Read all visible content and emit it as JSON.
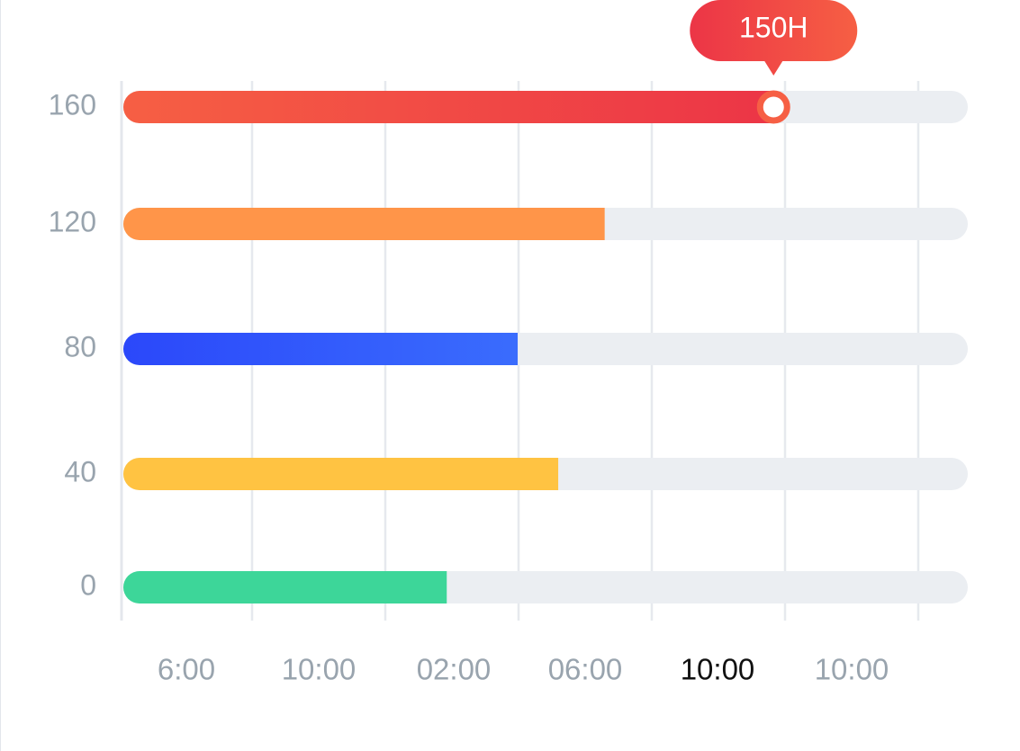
{
  "chart_data": {
    "type": "bar",
    "orientation": "horizontal",
    "y_ticks": [
      "160",
      "120",
      "80",
      "40",
      "0"
    ],
    "x_ticks": [
      "6:00",
      "10:00",
      "02:00",
      "06:00",
      "10:00",
      "10:00"
    ],
    "active_x_tick_index": 4,
    "bars": [
      {
        "category": "160",
        "fill_fraction": 0.77,
        "color_start": "#f65f44",
        "color_end": "#ec3546"
      },
      {
        "category": "120",
        "fill_fraction": 0.57,
        "color_start": "#ff9549",
        "color_end": "#ff9549"
      },
      {
        "category": "80",
        "fill_fraction": 0.467,
        "color_start": "#2b48fa",
        "color_end": "#3a6cfd"
      },
      {
        "category": "40",
        "fill_fraction": 0.515,
        "color_start": "#ffc342",
        "color_end": "#ffc342"
      },
      {
        "category": "0",
        "fill_fraction": 0.383,
        "color_start": "#3dd699",
        "color_end": "#3dd699"
      }
    ],
    "track_color": "#ebeef2",
    "gridlines": true,
    "tooltip": {
      "label": "150H",
      "bar_index": 0,
      "color_start": "#ec3546",
      "color_end": "#f65f44"
    }
  }
}
